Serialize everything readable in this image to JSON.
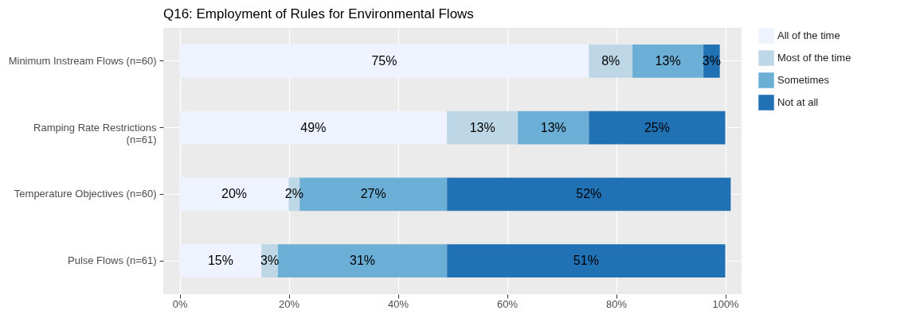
{
  "chart_data": {
    "type": "bar",
    "orientation": "horizontal",
    "stacked": true,
    "title": "Q16: Employment of Rules for Environmental Flows",
    "categories": [
      "Minimum Instream Flows (n=60)",
      "Ramping Rate Restrictions (n=61)",
      "Temperature Objectives (n=60)",
      "Pulse Flows (n=61)"
    ],
    "series": [
      {
        "name": "All of the time",
        "color": "#eff3ff",
        "values": [
          75,
          49,
          20,
          15
        ],
        "value_labels": [
          "75%",
          "49%",
          "20%",
          "15%"
        ]
      },
      {
        "name": "Most of the time",
        "color": "#bdd7e7",
        "values": [
          8,
          13,
          2,
          3
        ],
        "value_labels": [
          "8%",
          "13%",
          "2%",
          "3%"
        ]
      },
      {
        "name": "Sometimes",
        "color": "#6baed6",
        "values": [
          13,
          13,
          27,
          31
        ],
        "value_labels": [
          "13%",
          "13%",
          "27%",
          "31%"
        ]
      },
      {
        "name": "Not at all",
        "color": "#2171b5",
        "values": [
          3,
          25,
          52,
          51
        ],
        "value_labels": [
          "3%",
          "25%",
          "52%",
          "51%"
        ]
      }
    ],
    "xlim": [
      -3,
      103
    ],
    "xticks": [
      {
        "value": 0,
        "label": "0%"
      },
      {
        "value": 20,
        "label": "20%"
      },
      {
        "value": 40,
        "label": "40%"
      },
      {
        "value": 60,
        "label": "60%"
      },
      {
        "value": 80,
        "label": "80%"
      },
      {
        "value": 100,
        "label": "100%"
      }
    ],
    "grid": true,
    "legend": "right"
  }
}
